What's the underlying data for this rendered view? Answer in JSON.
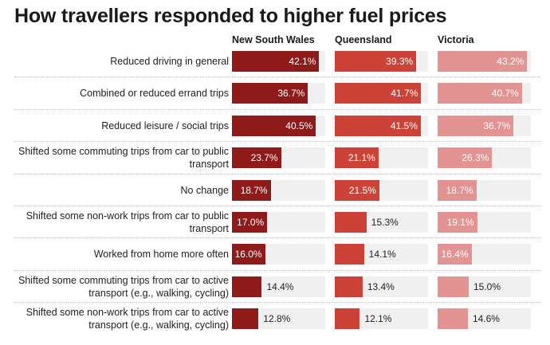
{
  "chart_data": {
    "type": "bar",
    "orientation": "horizontal",
    "title": "How travellers responded to higher fuel prices",
    "xlim": [
      0,
      45
    ],
    "categories": [
      "Reduced driving in general",
      "Combined or reduced errand trips",
      "Reduced leisure / social trips",
      "Shifted some commuting trips from car to public transport",
      "No change",
      "Shifted some non-work trips from car to public transport",
      "Worked from home more often",
      "Shifted some commuting trips from car to active transport (e.g., walking, cycling)",
      "Shifted some non-work trips from car to active transport (e.g., walking, cycling)"
    ],
    "series": [
      {
        "name": "New South Wales",
        "color": "#8e1a1a",
        "values": [
          42.1,
          36.7,
          40.5,
          23.7,
          18.7,
          17.0,
          16.0,
          14.4,
          12.8
        ],
        "labels": [
          "42.1%",
          "36.7%",
          "40.5%",
          "23.7%",
          "18.7%",
          "17.0%",
          "16.0%",
          "14.4%",
          "12.8%"
        ]
      },
      {
        "name": "Queensland",
        "color": "#cc4236",
        "values": [
          39.3,
          41.7,
          41.5,
          21.1,
          21.5,
          15.3,
          14.1,
          13.4,
          12.1
        ],
        "labels": [
          "39.3%",
          "41.7%",
          "41.5%",
          "21.1%",
          "21.5%",
          "15.3%",
          "14.1%",
          "13.4%",
          "12.1%"
        ]
      },
      {
        "name": "Victoria",
        "color": "#e39391",
        "values": [
          43.2,
          40.7,
          36.7,
          26.3,
          18.7,
          19.1,
          16.4,
          15.0,
          14.6
        ],
        "labels": [
          "43.2%",
          "40.7%",
          "36.7%",
          "26.3%",
          "18.7%",
          "19.1%",
          "16.4%",
          "15.0%",
          "14.6%"
        ]
      }
    ],
    "grid": false,
    "legend": "none"
  }
}
